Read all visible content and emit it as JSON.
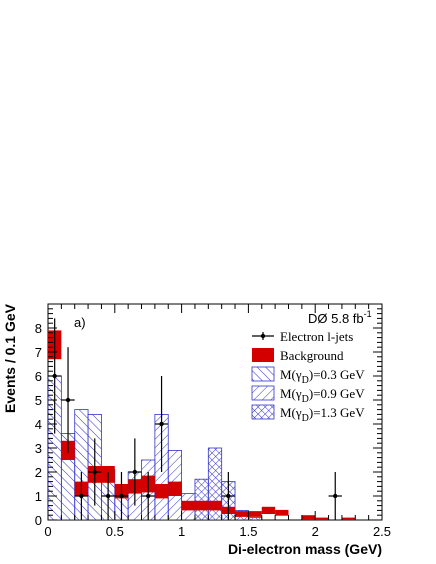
{
  "chart_data": {
    "type": "histogram",
    "panel_label": "a)",
    "experiment_label": "DØ 5.8 fb",
    "experiment_label_sup": "-1",
    "xlabel": "Di-electron mass (GeV)",
    "ylabel": "Events / 0.1 GeV",
    "xlim": [
      0,
      2.5
    ],
    "ylim": [
      0,
      9
    ],
    "x_ticks": [
      "0",
      "0.5",
      "1",
      "1.5",
      "2",
      "2.5"
    ],
    "y_ticks": [
      "0",
      "1",
      "2",
      "3",
      "4",
      "5",
      "6",
      "7",
      "8"
    ],
    "bin_width": 0.1,
    "bin_edges": [
      0.0,
      0.1,
      0.2,
      0.3,
      0.4,
      0.5,
      0.6,
      0.7,
      0.8,
      0.9,
      1.0,
      1.1,
      1.2,
      1.3,
      1.4,
      1.5,
      1.6,
      1.7,
      1.8,
      1.9,
      2.0,
      2.1,
      2.2,
      2.3,
      2.4
    ],
    "legend": [
      {
        "label": "Electron l-jets",
        "style": "data-points"
      },
      {
        "label": "Background",
        "style": "filled-red"
      },
      {
        "label": "M(γ",
        "sub": "D",
        "tail": ")=0.3 GeV",
        "style": "hatch-diagonal-blue"
      },
      {
        "label": "M(γ",
        "sub": "D",
        "tail": ")=0.9 GeV",
        "style": "hatch-backdiagonal-blue"
      },
      {
        "label": "M(γ",
        "sub": "D",
        "tail": ")=1.3 GeV",
        "style": "hatch-cross-blue"
      }
    ],
    "series": [
      {
        "name": "Background",
        "color": "#d40000",
        "central": [
          7.3,
          2.9,
          1.3,
          1.9,
          1.9,
          1.2,
          1.4,
          1.5,
          1.2,
          1.3,
          0.6,
          0.6,
          0.6,
          0.4,
          0.25,
          0.25,
          0.4,
          0.3,
          0.0,
          0.1,
          0.05,
          0.0,
          0.05,
          0.0
        ],
        "err": [
          0.6,
          0.4,
          0.3,
          0.35,
          0.35,
          0.3,
          0.3,
          0.35,
          0.3,
          0.3,
          0.2,
          0.2,
          0.2,
          0.15,
          0.12,
          0.12,
          0.15,
          0.12,
          0.0,
          0.1,
          0.05,
          0.0,
          0.05,
          0.0
        ]
      },
      {
        "name": "M(γD)=0.3 GeV",
        "color": "#3333cc",
        "values": [
          6.0,
          3.6,
          4.6,
          4.4,
          2.1,
          1.1,
          0.0,
          0.0,
          0.0,
          0.0,
          0.0,
          0.0,
          0.0,
          0.0,
          0.0,
          0.0,
          0.0,
          0.0,
          0.0,
          0.0,
          0.0,
          0.0,
          0.0,
          0.0
        ]
      },
      {
        "name": "M(γD)=0.9 GeV",
        "color": "#3333cc",
        "values": [
          0.0,
          0.0,
          0.0,
          0.0,
          0.0,
          0.0,
          2.0,
          2.5,
          4.4,
          2.9,
          1.1,
          0.0,
          0.0,
          0.0,
          0.0,
          0.0,
          0.0,
          0.0,
          0.0,
          0.0,
          0.0,
          0.0,
          0.0,
          0.0
        ]
      },
      {
        "name": "M(γD)=1.3 GeV",
        "color": "#3333cc",
        "values": [
          0.0,
          0.0,
          0.0,
          0.0,
          0.0,
          0.0,
          0.0,
          0.0,
          0.0,
          0.0,
          0.0,
          1.7,
          3.0,
          1.6,
          0.4,
          0.1,
          0.0,
          0.0,
          0.0,
          0.0,
          0.0,
          0.0,
          0.0,
          0.0
        ]
      },
      {
        "name": "Electron l-jets",
        "color": "#000000",
        "x": [
          0.05,
          0.15,
          0.25,
          0.35,
          0.45,
          0.55,
          0.65,
          0.75,
          0.85,
          1.35,
          2.15
        ],
        "y": [
          6,
          5,
          1,
          2,
          1,
          1,
          2,
          1,
          4,
          1,
          1
        ],
        "yerr_up": [
          2.4,
          2.2,
          1.0,
          1.4,
          1.0,
          1.0,
          1.4,
          1.0,
          2.0,
          1.0,
          1.0
        ],
        "yerr_down": [
          2.4,
          2.2,
          1.0,
          1.4,
          1.0,
          1.0,
          1.4,
          1.0,
          2.0,
          1.0,
          1.0
        ]
      }
    ]
  }
}
